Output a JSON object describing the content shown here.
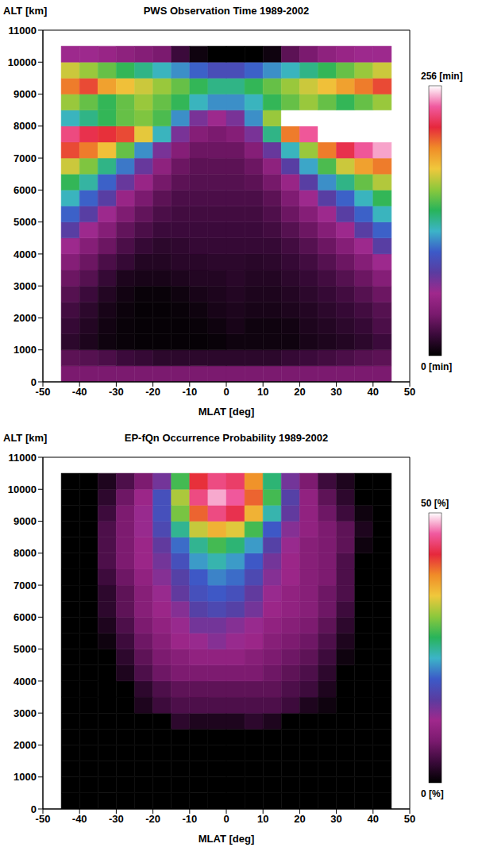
{
  "chart_data": [
    {
      "type": "heatmap",
      "title": "PWS Observation Time 1989-2002",
      "x_label": "MLAT [deg]",
      "y_label": "ALT [km]",
      "xlim": [
        -50,
        50
      ],
      "xticks": [
        -50,
        -40,
        -30,
        -20,
        -10,
        0,
        10,
        20,
        30,
        40,
        50
      ],
      "ylim": [
        0,
        11000
      ],
      "yticks": [
        0,
        1000,
        2000,
        3000,
        4000,
        5000,
        6000,
        7000,
        8000,
        9000,
        10000,
        11000
      ],
      "x_bins": [
        -45,
        -40,
        -35,
        -30,
        -25,
        -20,
        -15,
        -10,
        -5,
        0,
        5,
        10,
        15,
        20,
        25,
        30,
        35,
        40,
        45
      ],
      "y_bins": [
        0,
        500,
        1000,
        1500,
        2000,
        2500,
        3000,
        3500,
        4000,
        4500,
        5000,
        5500,
        6000,
        6500,
        7000,
        7500,
        8000,
        8500,
        9000,
        9500,
        10000,
        10500
      ],
      "cells": [
        [
          40,
          40,
          40,
          40,
          40,
          40,
          40,
          40,
          40,
          40,
          40,
          40,
          40,
          40,
          40,
          40,
          40,
          40
        ],
        [
          30,
          28,
          25,
          20,
          18,
          15,
          15,
          15,
          15,
          15,
          15,
          15,
          18,
          20,
          22,
          25,
          28,
          30
        ],
        [
          15,
          10,
          5,
          3,
          2,
          2,
          2,
          2,
          3,
          5,
          5,
          5,
          5,
          8,
          10,
          12,
          15,
          20
        ],
        [
          18,
          12,
          6,
          3,
          2,
          2,
          2,
          3,
          5,
          8,
          5,
          5,
          6,
          10,
          12,
          15,
          18,
          25
        ],
        [
          22,
          15,
          8,
          4,
          2,
          2,
          3,
          5,
          8,
          10,
          8,
          8,
          10,
          12,
          15,
          18,
          22,
          28
        ],
        [
          28,
          20,
          12,
          6,
          3,
          3,
          5,
          8,
          10,
          12,
          10,
          10,
          12,
          15,
          18,
          22,
          28,
          35
        ],
        [
          35,
          28,
          18,
          10,
          8,
          8,
          10,
          12,
          12,
          14,
          12,
          12,
          15,
          18,
          22,
          28,
          35,
          45
        ],
        [
          45,
          35,
          25,
          18,
          12,
          12,
          14,
          14,
          15,
          15,
          14,
          15,
          18,
          22,
          28,
          35,
          45,
          60
        ],
        [
          60,
          45,
          35,
          25,
          18,
          15,
          16,
          18,
          18,
          18,
          18,
          18,
          22,
          28,
          35,
          45,
          60,
          80
        ],
        [
          80,
          60,
          45,
          32,
          25,
          20,
          20,
          20,
          20,
          20,
          20,
          22,
          28,
          35,
          45,
          60,
          80,
          100
        ],
        [
          100,
          80,
          60,
          42,
          32,
          25,
          22,
          22,
          22,
          22,
          22,
          26,
          35,
          45,
          60,
          80,
          100,
          120
        ],
        [
          120,
          100,
          80,
          55,
          40,
          30,
          25,
          25,
          25,
          25,
          25,
          30,
          42,
          60,
          80,
          100,
          120,
          140
        ],
        [
          140,
          125,
          100,
          75,
          55,
          38,
          30,
          28,
          28,
          28,
          30,
          38,
          55,
          80,
          110,
          130,
          150,
          165
        ],
        [
          170,
          155,
          130,
          105,
          75,
          50,
          35,
          30,
          30,
          30,
          35,
          50,
          80,
          115,
          145,
          170,
          190,
          200
        ],
        [
          210,
          200,
          180,
          150,
          110,
          70,
          45,
          35,
          35,
          35,
          45,
          75,
          120,
          160,
          200,
          220,
          235,
          245
        ],
        [
          230,
          220,
          215,
          210,
          175,
          120,
          70,
          45,
          40,
          45,
          70,
          130,
          200,
          235,
          256,
          256,
          256,
          256
        ],
        [
          120,
          130,
          140,
          150,
          155,
          145,
          110,
          70,
          60,
          70,
          110,
          160,
          256,
          256,
          256,
          256,
          256,
          256
        ],
        [
          160,
          150,
          140,
          150,
          160,
          150,
          140,
          120,
          110,
          110,
          120,
          140,
          150,
          160,
          150,
          140,
          150,
          160
        ],
        [
          200,
          210,
          190,
          180,
          170,
          160,
          150,
          140,
          130,
          130,
          140,
          150,
          160,
          170,
          180,
          190,
          200,
          210
        ],
        [
          170,
          160,
          150,
          140,
          130,
          120,
          110,
          100,
          90,
          90,
          100,
          110,
          120,
          130,
          140,
          150,
          160,
          170
        ],
        [
          60,
          60,
          55,
          50,
          45,
          40,
          20,
          5,
          0,
          0,
          0,
          5,
          30,
          40,
          50,
          55,
          60,
          60
        ]
      ],
      "colorbar": {
        "range": [
          0,
          256
        ],
        "ticks": [
          {
            "value": 0,
            "label": "0 [min]"
          },
          {
            "value": 256,
            "label": "256 [min]"
          }
        ],
        "colors": [
          "#000000",
          "#3a0a3a",
          "#7a1a6e",
          "#a0288c",
          "#5a3ca0",
          "#3c5ac8",
          "#3cb4c8",
          "#28b45a",
          "#8cc83c",
          "#f0c83c",
          "#f08c28",
          "#e6283c",
          "#f05aa0",
          "#ffffff"
        ]
      }
    },
    {
      "type": "heatmap",
      "title": "EP-fQn Occurrence Probability 1989-2002",
      "x_label": "MLAT [deg]",
      "y_label": "ALT [km]",
      "xlim": [
        -50,
        50
      ],
      "xticks": [
        -50,
        -40,
        -30,
        -20,
        -10,
        0,
        10,
        20,
        30,
        40,
        50
      ],
      "ylim": [
        0,
        11000
      ],
      "yticks": [
        0,
        1000,
        2000,
        3000,
        4000,
        5000,
        6000,
        7000,
        8000,
        9000,
        10000,
        11000
      ],
      "x_bins": [
        -45,
        -40,
        -35,
        -30,
        -25,
        -20,
        -15,
        -10,
        -5,
        0,
        5,
        10,
        15,
        20,
        25,
        30,
        35,
        40,
        45
      ],
      "y_bins": [
        0,
        500,
        1000,
        1500,
        2000,
        2500,
        3000,
        3500,
        4000,
        4500,
        5000,
        5500,
        6000,
        6500,
        7000,
        7500,
        8000,
        8500,
        9000,
        9500,
        10000,
        10500
      ],
      "cells": [
        [
          0,
          0,
          0,
          0,
          0,
          0,
          0,
          0,
          0,
          0,
          0,
          0,
          0,
          0,
          0,
          0,
          0,
          0
        ],
        [
          0,
          0,
          0,
          0,
          0,
          0,
          0,
          0,
          0,
          0,
          0,
          0,
          0,
          0,
          0,
          0,
          0,
          0
        ],
        [
          0,
          0,
          0,
          0,
          0,
          0,
          0,
          0,
          0,
          0,
          0,
          0,
          0,
          0,
          0,
          0,
          0,
          0
        ],
        [
          0,
          0,
          0,
          0,
          0,
          0,
          0,
          0,
          0,
          0,
          0,
          0,
          0,
          0,
          0,
          0,
          0,
          0
        ],
        [
          0,
          0,
          0,
          0,
          0,
          0,
          0,
          0,
          0,
          0,
          0,
          0,
          0,
          0,
          0,
          0,
          0,
          0
        ],
        [
          0,
          0,
          0,
          0,
          0,
          0,
          3,
          2,
          2,
          2,
          3,
          2,
          0,
          0,
          0,
          0,
          0,
          0
        ],
        [
          0,
          0,
          0,
          0,
          2,
          4,
          5,
          5,
          5,
          5,
          5,
          5,
          4,
          2,
          1,
          0,
          0,
          0
        ],
        [
          0,
          0,
          0,
          0,
          3,
          5,
          6,
          6,
          6,
          6,
          6,
          6,
          5,
          4,
          2,
          0,
          0,
          0
        ],
        [
          0,
          0,
          0,
          2,
          5,
          7,
          8,
          8,
          8,
          8,
          8,
          7,
          6,
          5,
          3,
          0,
          0,
          0
        ],
        [
          0,
          0,
          0,
          3,
          6,
          8,
          9,
          10,
          10,
          10,
          9,
          8,
          7,
          6,
          4,
          1,
          0,
          0
        ],
        [
          0,
          0,
          1,
          4,
          7,
          9,
          11,
          12,
          13,
          12,
          11,
          9,
          8,
          7,
          5,
          2,
          0,
          0
        ],
        [
          0,
          0,
          2,
          5,
          8,
          10,
          12,
          14,
          14,
          13,
          12,
          10,
          9,
          8,
          6,
          3,
          0,
          0
        ],
        [
          0,
          0,
          3,
          6,
          9,
          11,
          13,
          16,
          17,
          16,
          14,
          11,
          10,
          9,
          7,
          4,
          0,
          0
        ],
        [
          0,
          0,
          3,
          6,
          9,
          12,
          15,
          18,
          19,
          18,
          15,
          12,
          10,
          9,
          7,
          5,
          0,
          0
        ],
        [
          0,
          0,
          4,
          7,
          10,
          13,
          16,
          19,
          21,
          20,
          17,
          13,
          11,
          9,
          8,
          5,
          0,
          0
        ],
        [
          0,
          0,
          5,
          8,
          11,
          14,
          18,
          22,
          24,
          22,
          19,
          14,
          11,
          9,
          8,
          5,
          0,
          0
        ],
        [
          0,
          0,
          5,
          8,
          11,
          15,
          20,
          25,
          28,
          26,
          22,
          16,
          12,
          9,
          8,
          6,
          1,
          0
        ],
        [
          0,
          0,
          5,
          8,
          12,
          17,
          25,
          33,
          36,
          34,
          28,
          19,
          13,
          10,
          8,
          6,
          2,
          0
        ],
        [
          0,
          0,
          4,
          8,
          12,
          18,
          30,
          40,
          45,
          43,
          36,
          24,
          15,
          10,
          7,
          4,
          1,
          0
        ],
        [
          0,
          0,
          3,
          7,
          11,
          18,
          32,
          45,
          48,
          46,
          40,
          28,
          16,
          10,
          6,
          3,
          0,
          0
        ],
        [
          0,
          0,
          2,
          5,
          8,
          14,
          28,
          42,
          45,
          44,
          38,
          26,
          14,
          8,
          4,
          2,
          0,
          0
        ]
      ],
      "colorbar": {
        "range": [
          0,
          50
        ],
        "ticks": [
          {
            "value": 0,
            "label": "0 [%]"
          },
          {
            "value": 50,
            "label": "50 [%]"
          }
        ],
        "colors": [
          "#000000",
          "#3a0a3a",
          "#7a1a6e",
          "#a0288c",
          "#5a3ca0",
          "#3c5ac8",
          "#3cb4c8",
          "#28b45a",
          "#8cc83c",
          "#f0c83c",
          "#f08c28",
          "#e6283c",
          "#f05aa0",
          "#ffffff"
        ]
      }
    }
  ]
}
